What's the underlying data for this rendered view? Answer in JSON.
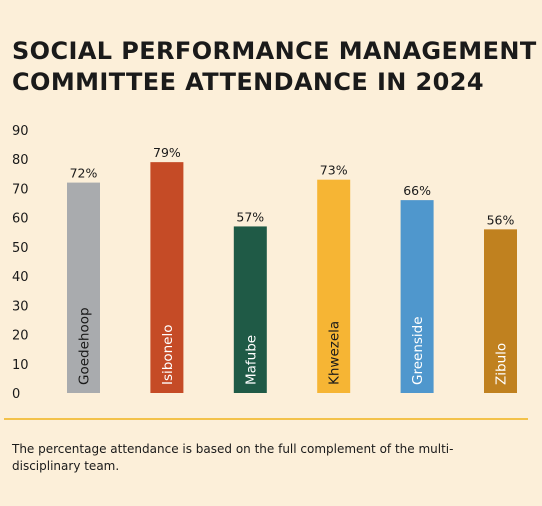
{
  "title_lines": [
    "SOCIAL PERFORMANCE MANAGEMENT",
    "COMMITTEE ATTENDANCE IN 2024"
  ],
  "footnote": "The percentage attendance is based on the full complement of the multi-disciplinary team.",
  "colors": {
    "background": "#fcefd9",
    "separator": "#f3c24a",
    "bar_label_light": "#ffffff",
    "bar_label_dark": "#1a1a1a"
  },
  "chart_data": {
    "type": "bar",
    "title": "SOCIAL PERFORMANCE MANAGEMENT COMMITTEE ATTENDANCE IN 2024",
    "categories": [
      "Goedehoop",
      "Isibonelo",
      "Mafube",
      "Khwezela",
      "Greenside",
      "Zibulo"
    ],
    "values": [
      72,
      79,
      57,
      73,
      66,
      56
    ],
    "value_labels": [
      "72%",
      "79%",
      "57%",
      "73%",
      "66%",
      "56%"
    ],
    "bar_colors": [
      "#a9abae",
      "#c54b26",
      "#1f5a46",
      "#f6b534",
      "#4f97cd",
      "#c0811f"
    ],
    "category_label_colors": [
      "#1a1a1a",
      "#ffffff",
      "#ffffff",
      "#1a1a1a",
      "#ffffff",
      "#ffffff"
    ],
    "ylim": [
      0,
      90
    ],
    "yticks": [
      0,
      10,
      20,
      30,
      40,
      50,
      60,
      70,
      80,
      90
    ],
    "xlabel": "",
    "ylabel": "",
    "grid": false,
    "legend": "none"
  }
}
